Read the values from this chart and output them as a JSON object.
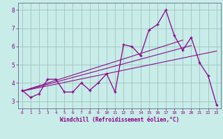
{
  "xlabel": "Windchill (Refroidissement éolien,°C)",
  "bg_color": "#c8ece8",
  "line_color": "#880088",
  "grid_color": "#99bbbb",
  "xlim": [
    -0.5,
    23.5
  ],
  "ylim": [
    2.6,
    8.4
  ],
  "xticks": [
    0,
    1,
    2,
    3,
    4,
    5,
    6,
    7,
    8,
    9,
    10,
    11,
    12,
    13,
    14,
    15,
    16,
    17,
    18,
    19,
    20,
    21,
    22,
    23
  ],
  "yticks": [
    3,
    4,
    5,
    6,
    7,
    8
  ],
  "line1": {
    "x": [
      0,
      1,
      2,
      3,
      4,
      5,
      6,
      7,
      8,
      9,
      10,
      11,
      12,
      13,
      14,
      15,
      16,
      17,
      18,
      19,
      20,
      21,
      22,
      23
    ],
    "y": [
      3.6,
      3.2,
      3.4,
      4.2,
      4.2,
      3.5,
      3.5,
      4.0,
      3.6,
      4.0,
      4.5,
      3.5,
      6.1,
      6.0,
      5.5,
      6.9,
      7.2,
      8.0,
      6.6,
      5.8,
      6.5,
      5.1,
      4.4,
      2.8
    ]
  },
  "trendlines": [
    {
      "x": [
        0,
        23
      ],
      "y": [
        3.55,
        5.75
      ]
    },
    {
      "x": [
        0,
        20
      ],
      "y": [
        3.55,
        6.05
      ]
    },
    {
      "x": [
        0,
        19
      ],
      "y": [
        3.55,
        6.35
      ]
    }
  ]
}
